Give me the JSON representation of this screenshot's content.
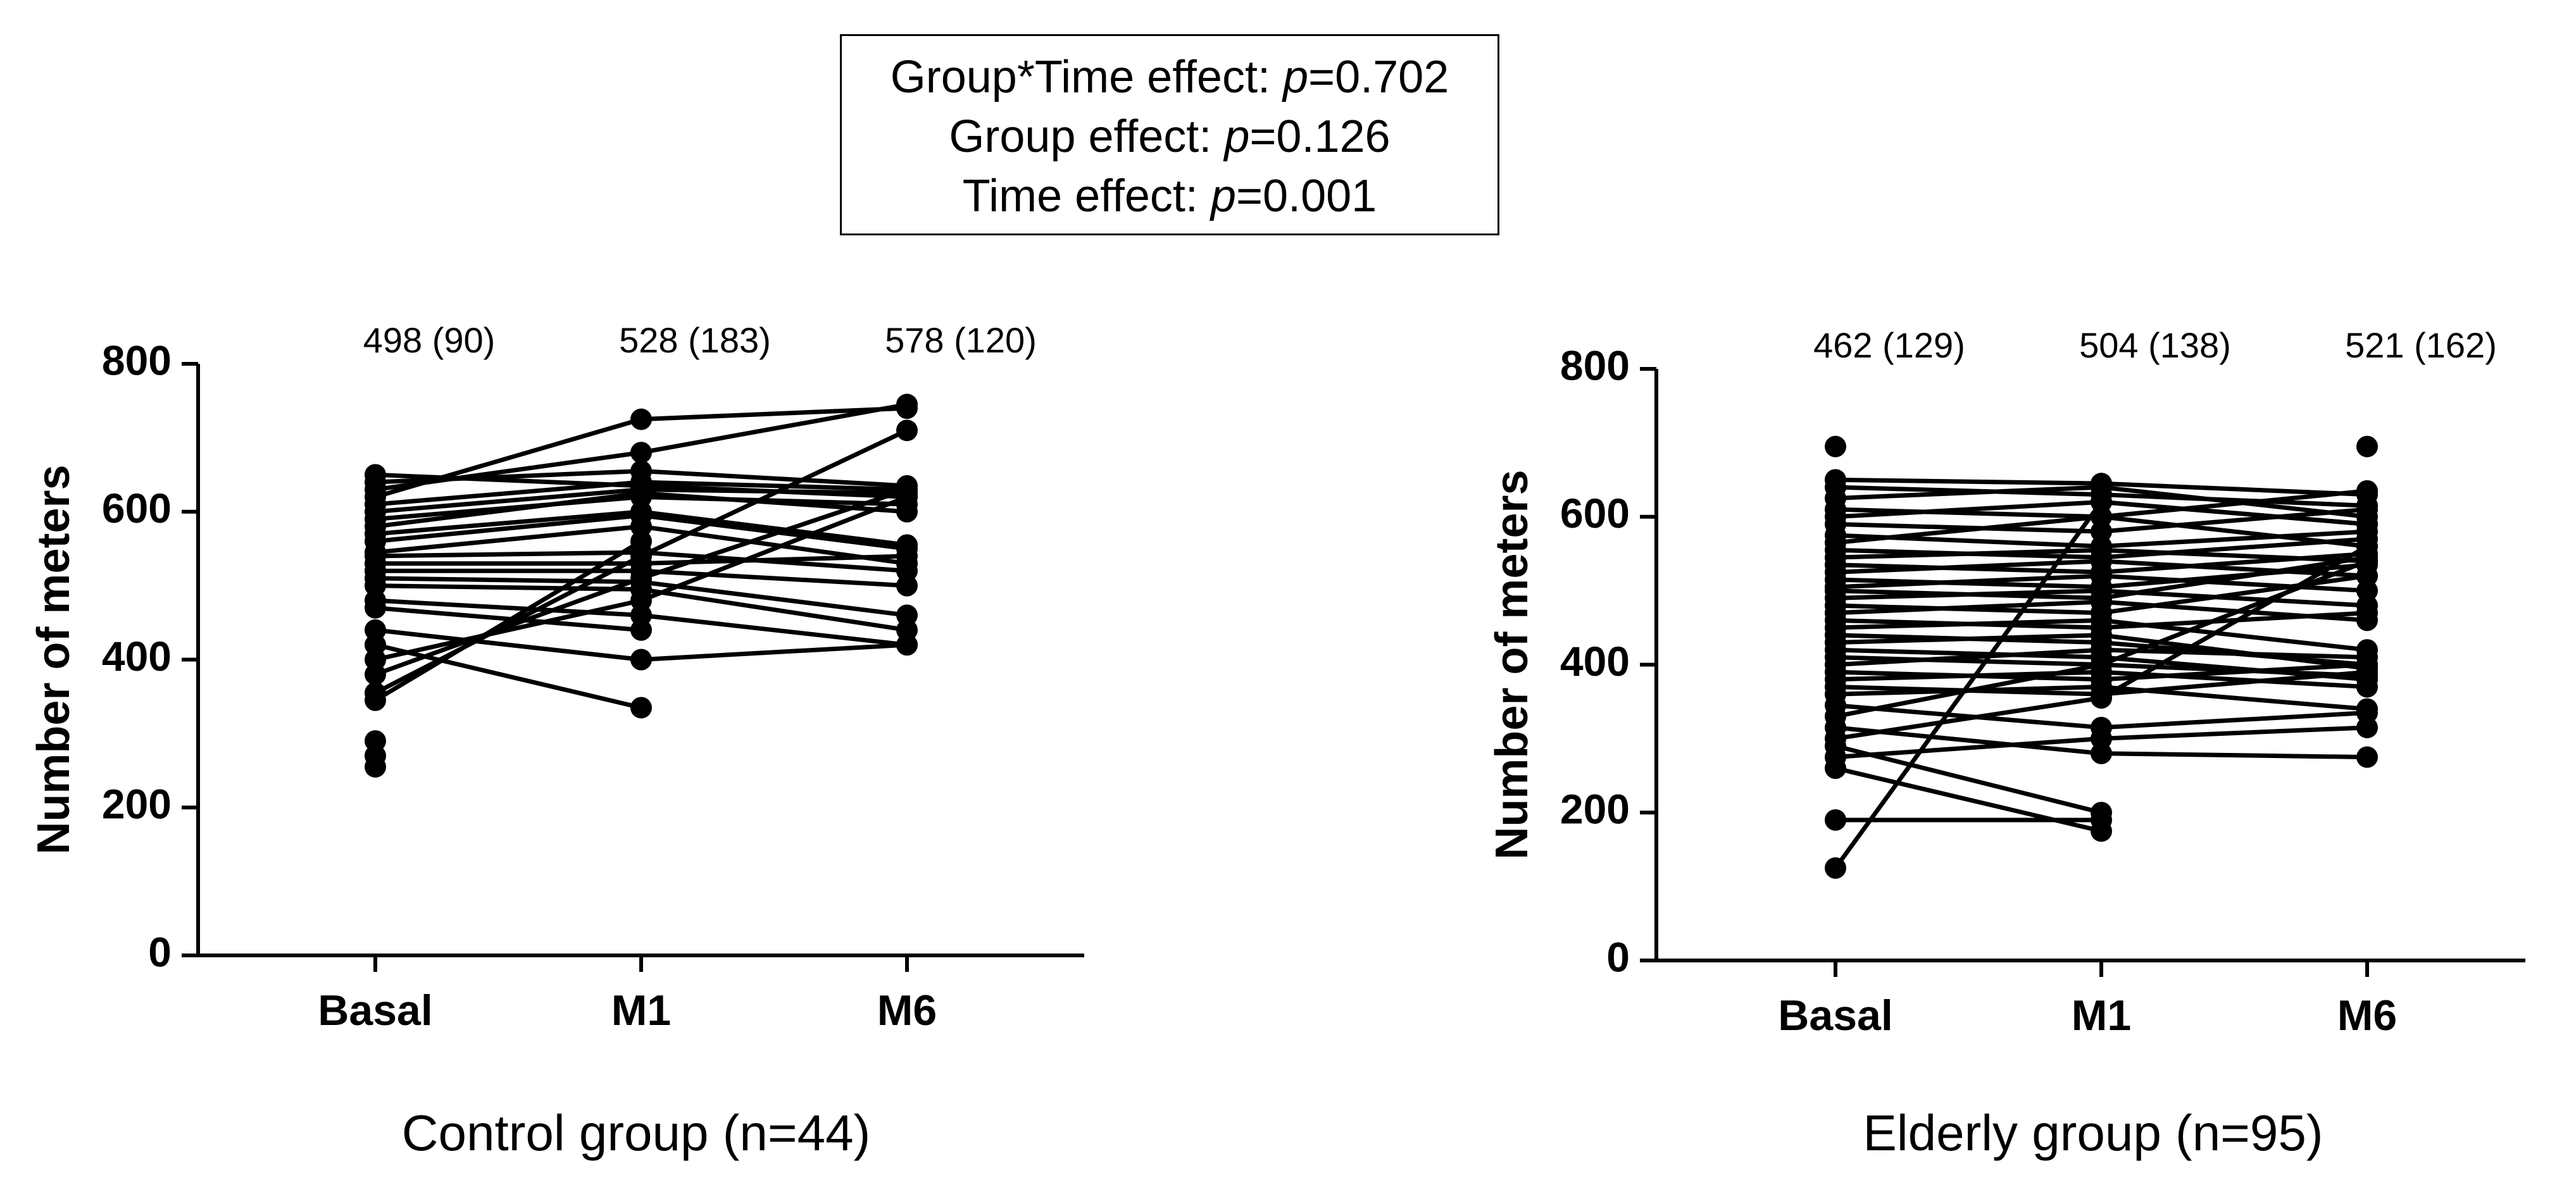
{
  "stats": [
    {
      "label": "Group*Time effect: ",
      "p_symbol": "p",
      "value": "=0.702"
    },
    {
      "label": "Group effect: ",
      "p_symbol": "p",
      "value": "=0.126"
    },
    {
      "label": "Time effect: ",
      "p_symbol": "p",
      "value": "=0.001"
    }
  ],
  "chart_data": [
    {
      "type": "line",
      "title": "Control group (n=44)",
      "xlabel": "",
      "ylabel": "Number of meters",
      "categories": [
        "Basal",
        "M1",
        "M6"
      ],
      "ylim": [
        0,
        800
      ],
      "yticks": [
        0,
        200,
        400,
        600,
        800
      ],
      "summary_labels": [
        "498 (90)",
        "528 (183)",
        "578 (120)"
      ],
      "series": [
        {
          "values": [
            650,
            635,
            620
          ]
        },
        {
          "values": [
            640,
            655,
            635
          ]
        },
        {
          "values": [
            630,
            680,
            745
          ]
        },
        {
          "values": [
            620,
            725,
            740
          ]
        },
        {
          "values": [
            610,
            640,
            630
          ]
        },
        {
          "values": [
            600,
            630,
            625
          ]
        },
        {
          "values": [
            590,
            620,
            610
          ]
        },
        {
          "values": [
            580,
            625,
            600
          ]
        },
        {
          "values": [
            570,
            600,
            555
          ]
        },
        {
          "values": [
            560,
            595,
            550
          ]
        },
        {
          "values": [
            545,
            580,
            530
          ]
        },
        {
          "values": [
            540,
            545,
            520
          ]
        },
        {
          "values": [
            530,
            530,
            540
          ]
        },
        {
          "values": [
            520,
            520,
            500
          ]
        },
        {
          "values": [
            510,
            505,
            460
          ]
        },
        {
          "values": [
            500,
            495,
            440
          ]
        },
        {
          "values": [
            480,
            460,
            420
          ]
        },
        {
          "values": [
            470,
            440,
            null
          ]
        },
        {
          "values": [
            440,
            400,
            420
          ]
        },
        {
          "values": [
            420,
            335,
            null
          ]
        },
        {
          "values": [
            400,
            480,
            620
          ]
        },
        {
          "values": [
            380,
            510,
            630
          ]
        },
        {
          "values": [
            355,
            540,
            710
          ]
        },
        {
          "values": [
            345,
            560,
            null
          ]
        },
        {
          "values": [
            290,
            null,
            null
          ]
        },
        {
          "values": [
            270,
            null,
            null
          ]
        },
        {
          "values": [
            255,
            null,
            null
          ]
        }
      ]
    },
    {
      "type": "line",
      "title": "Elderly group (n=95)",
      "xlabel": "",
      "ylabel": "Number of meters",
      "categories": [
        "Basal",
        "M1",
        "M6"
      ],
      "ylim": [
        0,
        800
      ],
      "yticks": [
        0,
        200,
        400,
        600,
        800
      ],
      "summary_labels": [
        "462 (129)",
        "504 (138)",
        "521 (162)"
      ],
      "series": [
        {
          "values": [
            695,
            null,
            695
          ]
        },
        {
          "values": [
            650,
            645,
            630
          ]
        },
        {
          "values": [
            640,
            630,
            615
          ]
        },
        {
          "values": [
            625,
            640,
            600
          ]
        },
        {
          "values": [
            610,
            600,
            635
          ]
        },
        {
          "values": [
            600,
            620,
            590
          ]
        },
        {
          "values": [
            590,
            580,
            610
          ]
        },
        {
          "values": [
            575,
            560,
            580
          ]
        },
        {
          "values": [
            565,
            600,
            560
          ]
        },
        {
          "values": [
            555,
            545,
            570
          ]
        },
        {
          "values": [
            545,
            555,
            540
          ]
        },
        {
          "values": [
            535,
            525,
            550
          ]
        },
        {
          "values": [
            525,
            540,
            520
          ]
        },
        {
          "values": [
            515,
            505,
            535
          ]
        },
        {
          "values": [
            505,
            520,
            500
          ]
        },
        {
          "values": [
            500,
            490,
            545
          ]
        },
        {
          "values": [
            490,
            500,
            480
          ]
        },
        {
          "values": [
            480,
            470,
            520
          ]
        },
        {
          "values": [
            470,
            485,
            460
          ]
        },
        {
          "values": [
            460,
            450,
            470
          ]
        },
        {
          "values": [
            450,
            460,
            420
          ]
        },
        {
          "values": [
            440,
            430,
            400
          ]
        },
        {
          "values": [
            430,
            440,
            395
          ]
        },
        {
          "values": [
            420,
            410,
            380
          ]
        },
        {
          "values": [
            410,
            400,
            385
          ]
        },
        {
          "values": [
            400,
            420,
            410
          ]
        },
        {
          "values": [
            390,
            380,
            400
          ]
        },
        {
          "values": [
            380,
            390,
            370
          ]
        },
        {
          "values": [
            370,
            360,
            390
          ]
        },
        {
          "values": [
            360,
            370,
            340
          ]
        },
        {
          "values": [
            345,
            315,
            335
          ]
        },
        {
          "values": [
            330,
            400,
            540
          ]
        },
        {
          "values": [
            315,
            280,
            275
          ]
        },
        {
          "values": [
            300,
            355,
            560
          ]
        },
        {
          "values": [
            290,
            200,
            null
          ]
        },
        {
          "values": [
            275,
            300,
            315
          ]
        },
        {
          "values": [
            260,
            175,
            null
          ]
        },
        {
          "values": [
            190,
            190,
            null
          ]
        },
        {
          "values": [
            125,
            620,
            590
          ]
        }
      ]
    }
  ]
}
